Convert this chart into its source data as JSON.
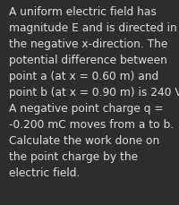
{
  "lines": [
    "A uniform electric field has",
    "magnitude E and is directed in",
    "the negative x-direction. The",
    "potential difference between",
    "point a (at x = 0.60 m) and",
    "point b (at x = 0.90 m) is 240 V.",
    "A negative point charge q =",
    "-0.200 mC moves from a to b.",
    "Calculate the work done on",
    "the point charge by the",
    "electric field."
  ],
  "background_color": "#2d2d2d",
  "text_color": "#e0e0e0",
  "font_size": 8.8,
  "fig_width": 2.0,
  "fig_height": 2.3,
  "dpi": 100
}
